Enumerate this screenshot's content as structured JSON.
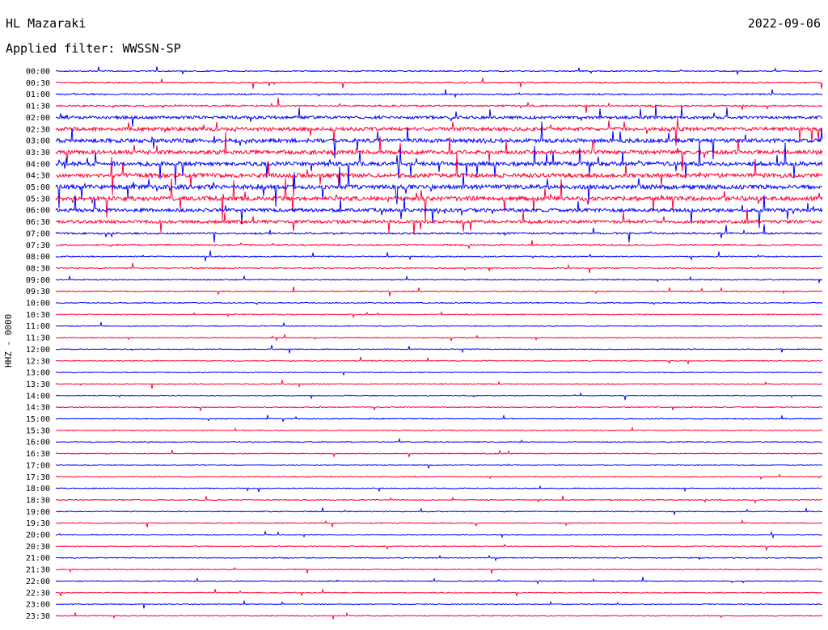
{
  "header": {
    "station": "HL Mazaraki",
    "filter": "Applied filter: WWSSN-SP",
    "date": "2022-09-06",
    "channel": "HHZ - 0000"
  },
  "colors": {
    "even_trace": "#0000ff",
    "odd_trace": "#ff0033",
    "background": "#ffffff"
  },
  "chart_data": {
    "type": "helicorder",
    "title": "HL Mazaraki",
    "ylabel": "HHZ - 0000",
    "row_labels": [
      "00:00",
      "00:30",
      "01:00",
      "01:30",
      "02:00",
      "02:30",
      "03:00",
      "03:30",
      "04:00",
      "04:30",
      "05:00",
      "05:30",
      "06:00",
      "06:30",
      "07:00",
      "07:30",
      "08:00",
      "08:30",
      "09:00",
      "09:30",
      "10:00",
      "10:30",
      "11:00",
      "11:30",
      "12:00",
      "12:30",
      "13:00",
      "13:30",
      "14:00",
      "14:30",
      "15:00",
      "15:30",
      "16:00",
      "16:30",
      "17:00",
      "17:30",
      "18:00",
      "18:30",
      "19:00",
      "19:30",
      "20:00",
      "20:30",
      "21:00",
      "21:30",
      "22:00",
      "22:30",
      "23:00",
      "23:30"
    ],
    "row_duration_minutes": 30,
    "activity_level": [
      0.6,
      0.7,
      0.8,
      0.9,
      1.6,
      2.0,
      2.2,
      2.2,
      2.3,
      2.3,
      2.4,
      2.4,
      1.9,
      1.7,
      1.0,
      0.8,
      0.6,
      0.6,
      0.6,
      0.55,
      0.55,
      0.5,
      0.5,
      0.5,
      0.5,
      0.5,
      0.5,
      0.5,
      0.5,
      0.5,
      0.5,
      0.5,
      0.5,
      0.5,
      0.5,
      0.5,
      0.5,
      0.5,
      0.5,
      0.5,
      0.5,
      0.5,
      0.5,
      0.5,
      0.5,
      0.5,
      0.5,
      0.5
    ]
  }
}
